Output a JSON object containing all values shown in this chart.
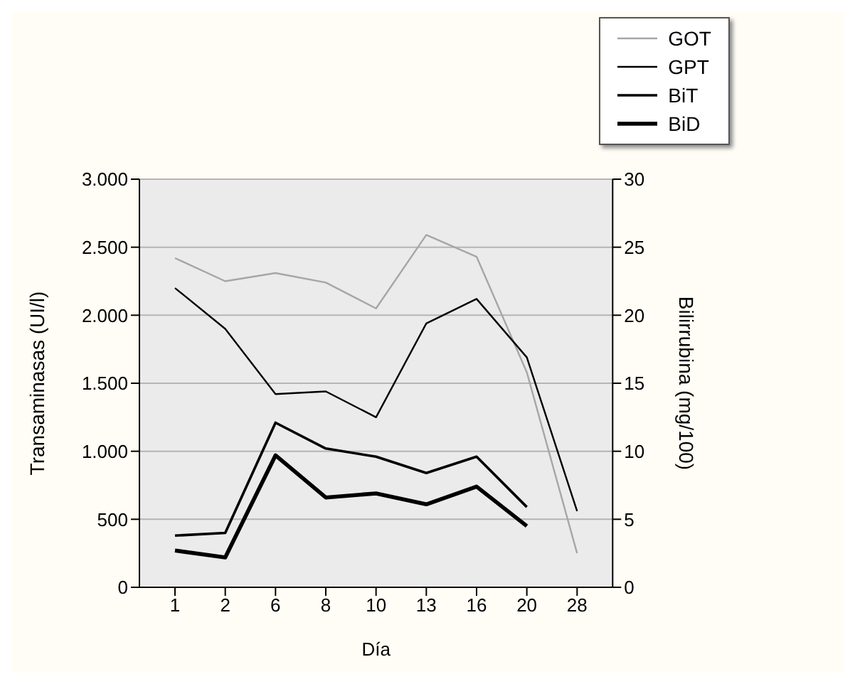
{
  "chart_data": {
    "type": "line",
    "xlabel": "Día",
    "ylabel": "Transaminasas (UI/l)",
    "y2label": "Bilirrubina (mg/100)",
    "categories": [
      "1",
      "2",
      "6",
      "8",
      "10",
      "13",
      "16",
      "20",
      "28"
    ],
    "series": [
      {
        "name": "GOT",
        "color": "#a6a6a6",
        "values": [
          2420,
          2250,
          2310,
          2240,
          2050,
          2590,
          2430,
          1580,
          250
        ]
      },
      {
        "name": "GPT",
        "color": "#000000",
        "values": [
          2200,
          1900,
          1420,
          1440,
          1250,
          1940,
          2120,
          1690,
          560
        ]
      },
      {
        "name": "BiT",
        "color": "#000000",
        "axis": "y2",
        "values": [
          3.8,
          4.0,
          12.1,
          10.2,
          9.6,
          8.4,
          9.6,
          5.9,
          null
        ]
      },
      {
        "name": "BiD",
        "color": "#000000",
        "axis": "y2",
        "values": [
          2.7,
          2.2,
          9.7,
          6.6,
          6.9,
          6.1,
          7.4,
          4.5,
          null
        ]
      }
    ],
    "ylim": [
      0,
      3000
    ],
    "yticks": [
      0,
      {
        "value": 500,
        "label": "500"
      },
      {
        "value": 1000,
        "label": "1.000"
      },
      {
        "value": 1500,
        "label": "1.500"
      },
      {
        "value": 2000,
        "label": "2.000"
      },
      {
        "value": 2500,
        "label": "2.500"
      },
      {
        "value": 3000,
        "label": "3.000"
      }
    ],
    "y2lim": [
      0,
      30
    ],
    "y2ticks": [
      0,
      5,
      10,
      15,
      20,
      25,
      30
    ],
    "grid": "y",
    "legend": "top right",
    "marker": "none",
    "line_style": "solid"
  }
}
